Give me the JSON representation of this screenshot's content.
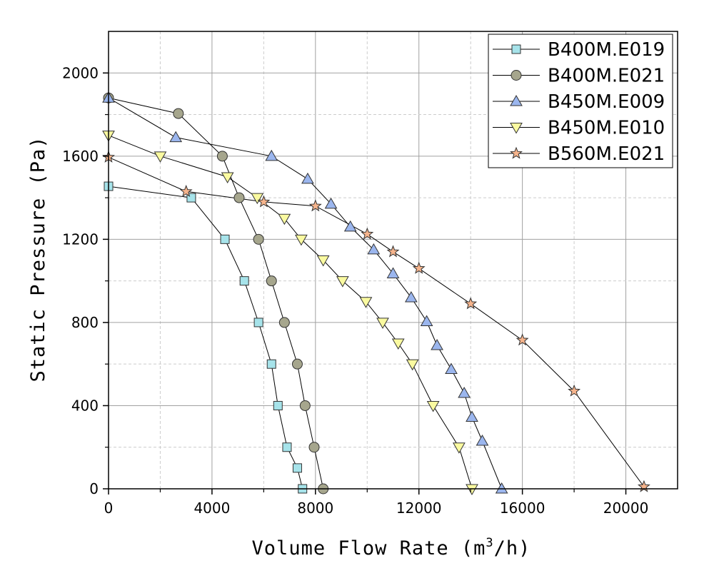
{
  "chart_data": {
    "type": "line",
    "title": "",
    "xlabel": "Volume Flow Rate (m",
    "xlabel_sup": "3",
    "xlabel_suffix": "/h)",
    "ylabel": "Static Pressure (Pa)",
    "xlim": [
      0,
      22000
    ],
    "ylim": [
      0,
      2200
    ],
    "xticks": [
      0,
      4000,
      8000,
      12000,
      16000,
      20000
    ],
    "yticks": [
      0,
      400,
      800,
      1200,
      1600,
      2000
    ],
    "grid": true,
    "legend_position": "top-right",
    "series": [
      {
        "name": "B400M.E019",
        "marker": "square",
        "color": "#a6e3ea",
        "x": [
          0,
          3200,
          4500,
          5250,
          5800,
          6300,
          6550,
          6900,
          7300,
          7500
        ],
        "y": [
          1455,
          1400,
          1200,
          1000,
          800,
          600,
          400,
          200,
          100,
          0
        ]
      },
      {
        "name": "B400M.E021",
        "marker": "circle",
        "color": "#a6a68d",
        "x": [
          0,
          2700,
          4400,
          5050,
          5800,
          6300,
          6800,
          7300,
          7600,
          7950,
          8300
        ],
        "y": [
          1880,
          1805,
          1600,
          1400,
          1200,
          1000,
          800,
          600,
          400,
          200,
          0
        ]
      },
      {
        "name": "B450M.E009",
        "marker": "triangle-up",
        "color": "#9bb6ee",
        "x": [
          0,
          2600,
          6300,
          7700,
          8600,
          9350,
          10250,
          11000,
          11700,
          12300,
          12700,
          13250,
          13750,
          14050,
          14450,
          15200
        ],
        "y": [
          1880,
          1690,
          1600,
          1490,
          1370,
          1260,
          1150,
          1035,
          920,
          805,
          690,
          575,
          460,
          345,
          230,
          0
        ]
      },
      {
        "name": "B450M.E010",
        "marker": "triangle-down",
        "color": "#fafaa0",
        "x": [
          0,
          2000,
          4600,
          5750,
          6800,
          7450,
          8300,
          9050,
          9950,
          10600,
          11200,
          11750,
          12550,
          13550,
          14050
        ],
        "y": [
          1700,
          1600,
          1500,
          1400,
          1300,
          1200,
          1100,
          1000,
          900,
          800,
          700,
          600,
          400,
          200,
          0
        ]
      },
      {
        "name": "B560M.E021",
        "marker": "star",
        "color": "#f6b48c",
        "x": [
          0,
          3000,
          6000,
          8000,
          10000,
          11000,
          12000,
          14000,
          16000,
          18000,
          20700
        ],
        "y": [
          1595,
          1430,
          1380,
          1360,
          1225,
          1140,
          1060,
          890,
          715,
          470,
          10
        ]
      }
    ]
  }
}
